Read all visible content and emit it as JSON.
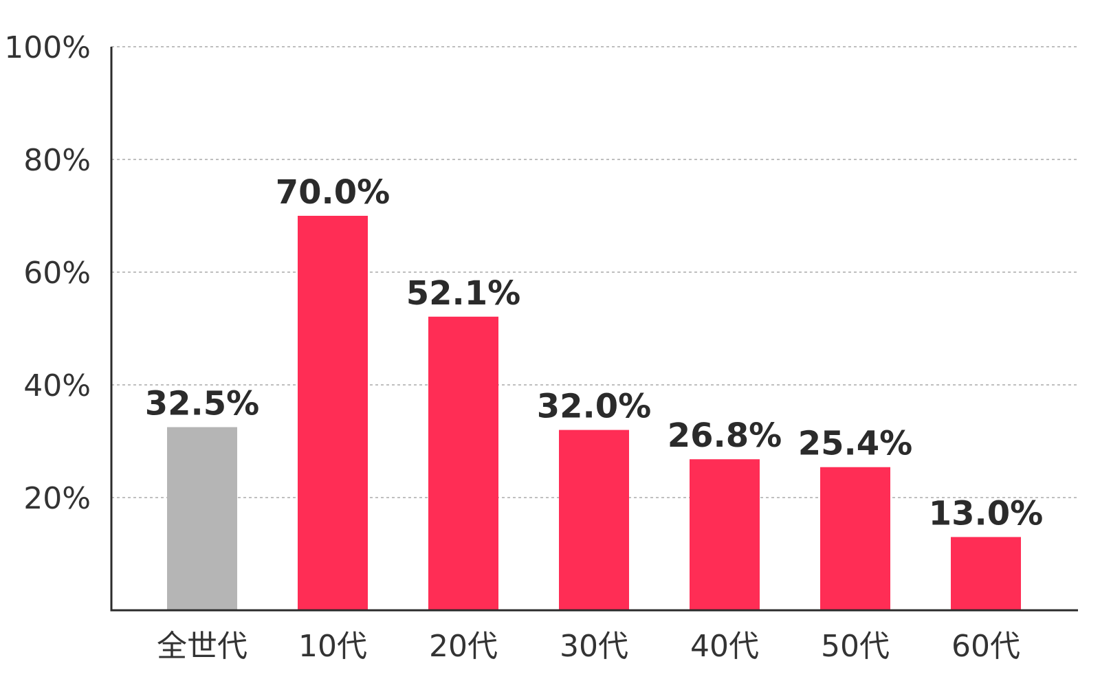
{
  "chart_data": {
    "type": "bar",
    "title": "",
    "xlabel": "",
    "ylabel": "",
    "categories": [
      "全世代",
      "10代",
      "20代",
      "30代",
      "40代",
      "50代",
      "60代"
    ],
    "values": [
      32.5,
      70.0,
      52.1,
      32.0,
      26.8,
      25.4,
      13.0
    ],
    "value_labels": [
      "32.5%",
      "70.0%",
      "52.1%",
      "32.0%",
      "26.8%",
      "25.4%",
      "13.0%"
    ],
    "ylim": [
      0,
      100
    ],
    "yticks": [
      {
        "value": 20,
        "label": "20%"
      },
      {
        "value": 40,
        "label": "40%"
      },
      {
        "value": 60,
        "label": "60%"
      },
      {
        "value": 80,
        "label": "80%"
      },
      {
        "value": 100,
        "label": "100%"
      }
    ],
    "grid": "horizontal dashed",
    "legend": "none",
    "colors": {
      "highlight": "#b5b5b5",
      "bars": "#ff2d55",
      "axis": "#2b2b2b",
      "grid": "#aaaaaa"
    },
    "bar_colors": [
      "#b5b5b5",
      "#ff2d55",
      "#ff2d55",
      "#ff2d55",
      "#ff2d55",
      "#ff2d55",
      "#ff2d55"
    ]
  }
}
